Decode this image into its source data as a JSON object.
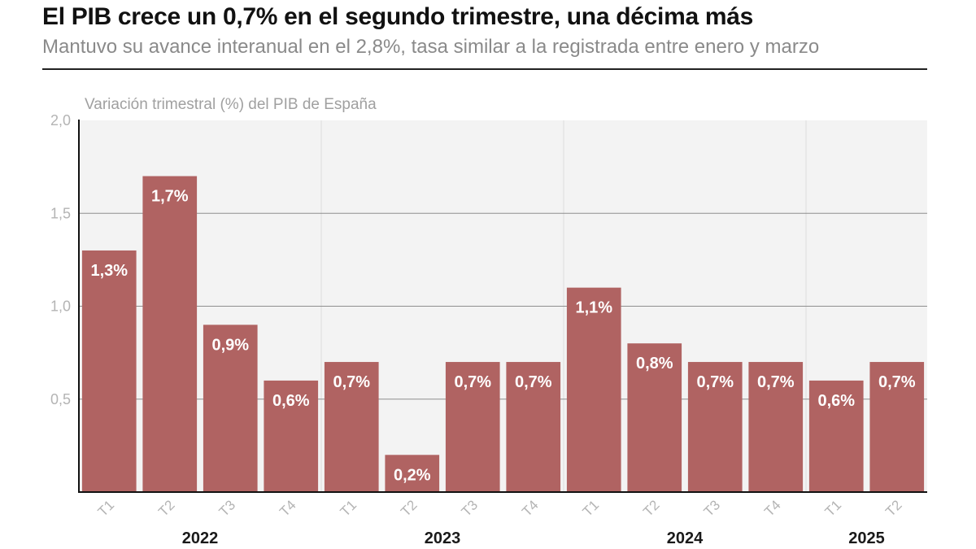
{
  "header": {
    "title": "El PIB crece un 0,7% en el segundo trimestre, una décima más",
    "subtitle": "Mantuvo su avance interanual en el 2,8%, tasa similar a la registrada entre enero y marzo"
  },
  "colors": {
    "bar": "#b06362",
    "plot_background": "#f3f3f3",
    "gridline": "#8e8e8e",
    "year_separator": "#dedede",
    "axis": "#111111"
  },
  "chart_data": {
    "type": "bar",
    "ylabel": "Variación trimestral (%) del PIB de España",
    "ylim": [
      0,
      2.0
    ],
    "yticks": [
      0.5,
      1.0,
      1.5,
      2.0
    ],
    "ytick_labels": [
      "0,5",
      "1,0",
      "1,5",
      "2,0"
    ],
    "grid": true,
    "categories": [
      "T1",
      "T2",
      "T3",
      "T4",
      "T1",
      "T2",
      "T3",
      "T4",
      "T1",
      "T2",
      "T3",
      "T4",
      "T1",
      "T2"
    ],
    "values": [
      1.3,
      1.7,
      0.9,
      0.6,
      0.7,
      0.2,
      0.7,
      0.7,
      1.1,
      0.8,
      0.7,
      0.7,
      0.6,
      0.7
    ],
    "data_labels": [
      "1,3%",
      "1,7%",
      "0,9%",
      "0,6%",
      "0,7%",
      "0,2%",
      "0,7%",
      "0,7%",
      "1,1%",
      "0,8%",
      "0,7%",
      "0,7%",
      "0,6%",
      "0,7%"
    ],
    "year_groups": [
      {
        "label": "2022",
        "count": 4
      },
      {
        "label": "2023",
        "count": 4
      },
      {
        "label": "2024",
        "count": 4
      },
      {
        "label": "2025",
        "count": 2
      }
    ]
  }
}
